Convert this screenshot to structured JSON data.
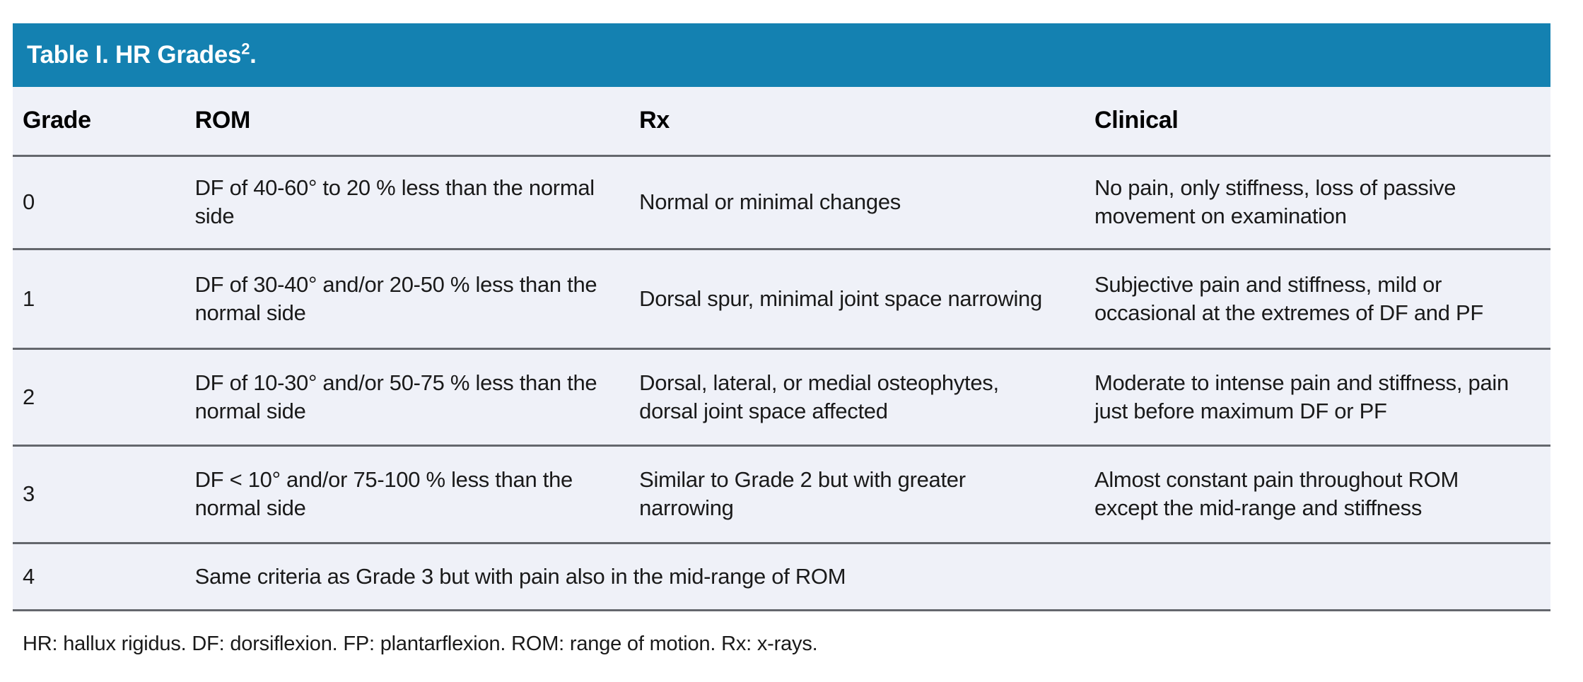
{
  "table": {
    "title": "Table I. HR Grades",
    "title_superscript": "2",
    "title_suffix": ".",
    "columns": [
      "Grade",
      "ROM",
      "Rx",
      "Clinical"
    ],
    "rows": [
      {
        "grade": "0",
        "rom": "DF of 40-60° to 20 % less than the normal side",
        "rx": "Normal or minimal changes",
        "clinical": "No pain, only stiffness, loss of passive movement on examination"
      },
      {
        "grade": "1",
        "rom": "DF of 30-40° and/or 20-50 % less than the normal side",
        "rx": "Dorsal spur, minimal joint space narrowing",
        "clinical": "Subjective pain and stiffness, mild or occasional at the extremes of DF and PF"
      },
      {
        "grade": "2",
        "rom": "DF of 10-30° and/or 50-75 % less than the normal side",
        "rx": "Dorsal, lateral, or medial osteophytes, dorsal joint space affected",
        "clinical": "Moderate to intense pain and stiffness, pain just before maximum DF or PF"
      },
      {
        "grade": "3",
        "rom": "DF < 10° and/or 75-100 % less than the normal side",
        "rx": "Similar to Grade 2 but with greater narrowing",
        "clinical": "Almost constant pain throughout ROM except the mid-range and stiffness"
      },
      {
        "grade": "4",
        "spanning": "Same criteria as Grade 3 but with pain also in the mid-range of ROM"
      }
    ],
    "footnote": "HR: hallux rigidus. DF: dorsiflexion. FP: plantarflexion. ROM: range of motion. Rx: x-rays.",
    "colors": {
      "title_bar_bg": "#1481B1",
      "body_bg": "#EFF1F8",
      "divider": "#64676D",
      "title_text": "#FFFFFF",
      "body_text": "#1A1A1A"
    }
  }
}
